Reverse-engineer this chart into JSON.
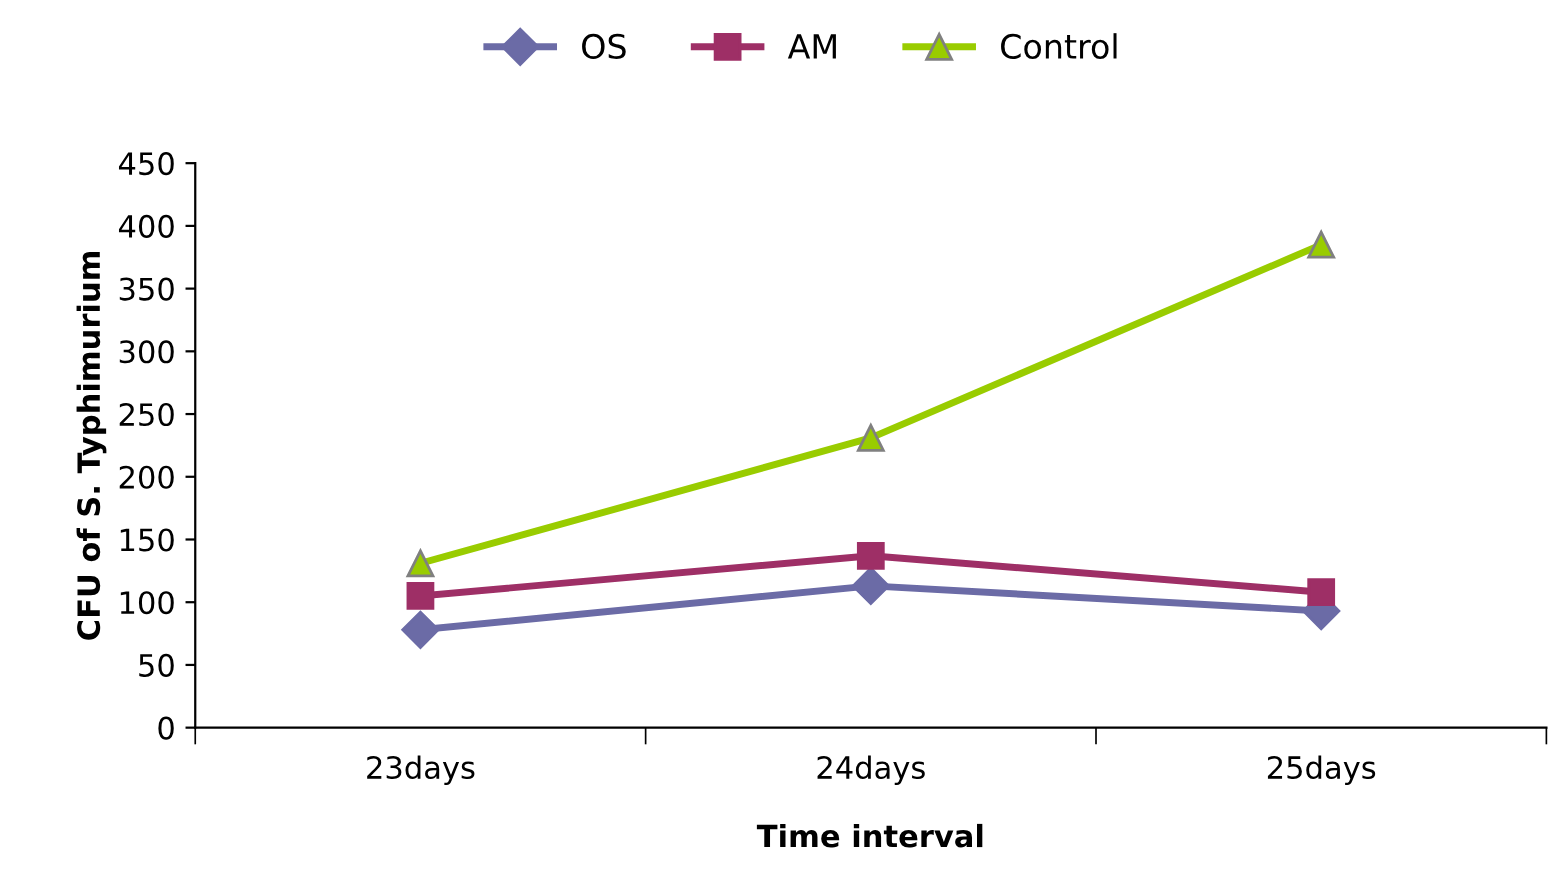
{
  "chart_data": {
    "type": "line",
    "xlabel": "Time interval",
    "ylabel": "CFU of S. Typhimurium",
    "categories": [
      "23days",
      "24days",
      "25days"
    ],
    "series": [
      {
        "name": "OS",
        "color": "#6b6ba6",
        "marker": "diamond",
        "values": [
          78,
          113,
          93
        ]
      },
      {
        "name": "AM",
        "color": "#9e2f66",
        "marker": "square",
        "values": [
          105,
          137,
          108
        ]
      },
      {
        "name": "Control",
        "color": "#99cc00",
        "marker": "triangle",
        "values": [
          131,
          231,
          385
        ]
      }
    ],
    "ylim": [
      0,
      450
    ],
    "yticks": [
      0,
      50,
      100,
      150,
      200,
      250,
      300,
      350,
      400,
      450
    ],
    "grid": false,
    "legend": "top",
    "line_style": "solid"
  }
}
